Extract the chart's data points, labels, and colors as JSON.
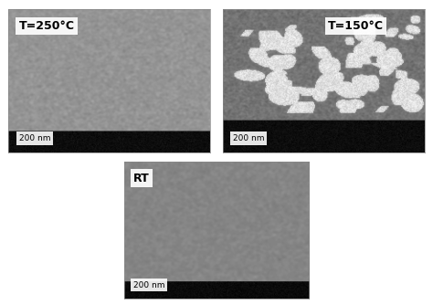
{
  "bg_color": "#ffffff",
  "panel_labels": [
    "T=250°C",
    "T=150°C",
    "RT"
  ],
  "scale_bar_text": "200 nm",
  "top_left_color_light": "#a8a8a8",
  "top_left_color_dark": "#606060",
  "top_right_color_light": "#b0b0b0",
  "top_right_color_dark": "#505050",
  "bottom_color_light": "#909090",
  "bottom_strip_color": "#111111",
  "label_box_color": "#ffffff",
  "label_text_color": "#000000",
  "scale_bar_box_color": "#ffffff",
  "scale_bar_color": "#111111",
  "figure_width": 4.74,
  "figure_height": 3.34,
  "dpi": 100
}
